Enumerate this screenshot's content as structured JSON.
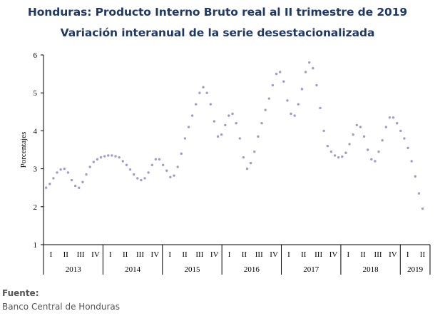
{
  "source": {
    "label": "Fuente:",
    "value": "Banco Central de Honduras"
  },
  "colors": {
    "series": "#a29bc9",
    "title": "#1f3864",
    "axis": "#000000"
  },
  "chart_data": {
    "type": "line",
    "title": "Honduras: Producto Interno Bruto real al II trimestre de 2019",
    "subtitle": "Variación interanual de la serie desestacionalizada",
    "xlabel": "",
    "ylabel": "Porcentajes",
    "ylim": [
      1,
      6
    ],
    "yticks": [
      1,
      2,
      3,
      4,
      5,
      6
    ],
    "quarter_labels": [
      "I",
      "II",
      "III",
      "IV"
    ],
    "years": [
      "2013",
      "2014",
      "2015",
      "2016",
      "2017",
      "2018",
      "2019"
    ],
    "grid": false,
    "line_style": "dotted",
    "series": [
      {
        "name": "",
        "values": [
          2.5,
          2.6,
          2.75,
          2.9,
          2.98,
          3.0,
          2.9,
          2.7,
          2.55,
          2.5,
          2.65,
          2.85,
          3.05,
          3.18,
          3.25,
          3.3,
          3.33,
          3.35,
          3.35,
          3.33,
          3.3,
          3.2,
          3.1,
          2.98,
          2.85,
          2.75,
          2.7,
          2.75,
          2.9,
          3.1,
          3.25,
          3.25,
          3.1,
          2.95,
          2.78,
          2.82,
          3.05,
          3.4,
          3.8,
          4.1,
          4.4,
          4.7,
          5.0,
          5.15,
          5.0,
          4.7,
          4.25,
          3.85,
          3.9,
          4.15,
          4.4,
          4.45,
          4.2,
          3.8,
          3.3,
          3.0,
          3.15,
          3.45,
          3.85,
          4.2,
          4.55,
          4.85,
          5.2,
          5.5,
          5.55,
          5.3,
          4.8,
          4.45,
          4.4,
          4.7,
          5.1,
          5.55,
          5.8,
          5.65,
          5.2,
          4.6,
          4.0,
          3.6,
          3.45,
          3.35,
          3.3,
          3.32,
          3.42,
          3.65,
          3.9,
          4.15,
          4.1,
          3.85,
          3.5,
          3.25,
          3.2,
          3.45,
          3.75,
          4.1,
          4.35,
          4.35,
          4.2,
          4.0,
          3.8,
          3.55,
          3.2,
          2.8,
          2.35,
          1.95
        ]
      }
    ]
  }
}
